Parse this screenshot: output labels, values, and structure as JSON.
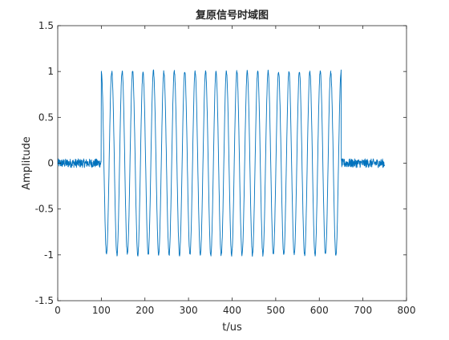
{
  "chart_data": {
    "type": "line",
    "title": "复原信号时域图",
    "xlabel": "t/us",
    "ylabel": "Amplitude",
    "xlim": [
      0,
      800
    ],
    "ylim": [
      -1.5,
      1.5
    ],
    "xticks": [
      0,
      100,
      200,
      300,
      400,
      500,
      600,
      700,
      800
    ],
    "yticks": [
      -1.5,
      -1,
      -0.5,
      0,
      0.5,
      1,
      1.5
    ],
    "xtick_labels": [
      "0",
      "100",
      "200",
      "300",
      "400",
      "500",
      "600",
      "700",
      "800"
    ],
    "ytick_labels": [
      "-1.5",
      "-1",
      "-0.5",
      "0",
      "0.5",
      "1",
      "1.5"
    ],
    "grid": false,
    "series": [
      {
        "name": "复原信号",
        "color": "#0072BD",
        "signal": {
          "t_start": 0,
          "t_end": 750,
          "burst_start": 100,
          "burst_end": 650,
          "burst_amplitude": 1.0,
          "cycles_in_burst": 23,
          "noise_amplitude": 0.06
        }
      }
    ]
  }
}
